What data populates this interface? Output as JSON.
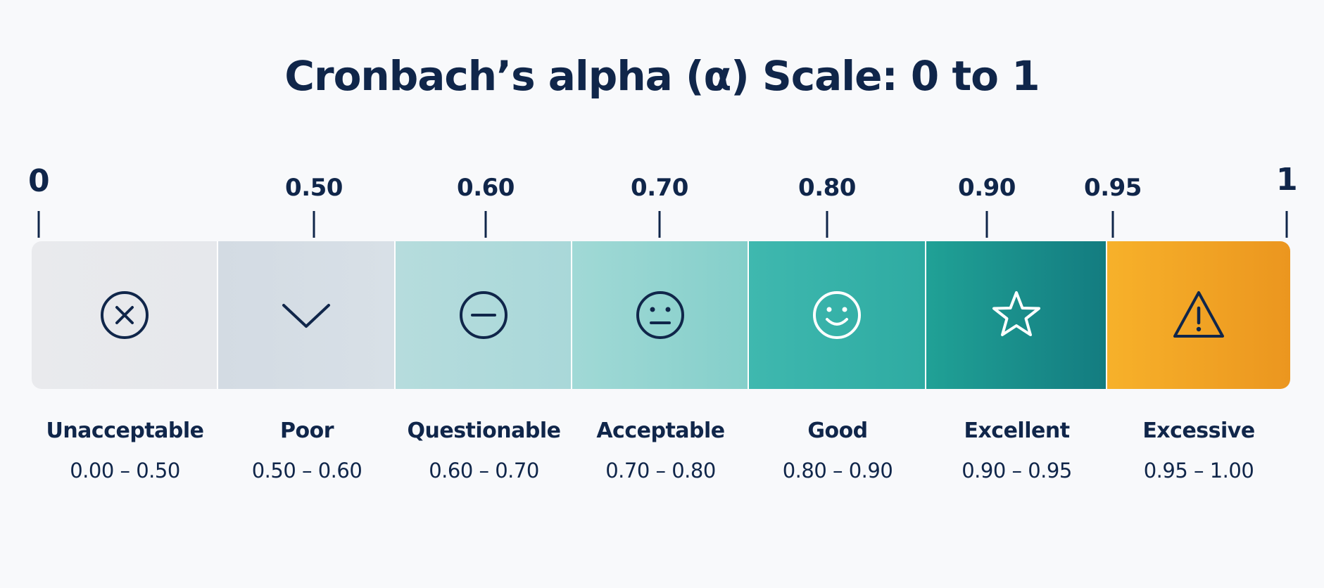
{
  "title": "Cronbach’s alpha (α) Scale: 0 to 1",
  "ticks": [
    {
      "value": 0,
      "label": "0"
    },
    {
      "value": 0.5,
      "label": "0.50"
    },
    {
      "value": 0.6,
      "label": "0.60"
    },
    {
      "value": 0.7,
      "label": "0.70"
    },
    {
      "value": 0.8,
      "label": "0.80"
    },
    {
      "value": 0.9,
      "label": "0.90"
    },
    {
      "value": 0.95,
      "label": "0.95"
    },
    {
      "value": 1,
      "label": "1"
    }
  ],
  "segments": [
    {
      "name": "Unacceptable",
      "range": "0.00 – 0.50",
      "icon": "x-circle-icon",
      "colors": [
        "#e9eaed",
        "#e6e8ec"
      ]
    },
    {
      "name": "Poor",
      "range": "0.50 – 0.60",
      "icon": "chevron-down-icon",
      "colors": [
        "#d3dbe3",
        "#d8e0e7"
      ]
    },
    {
      "name": "Questionable",
      "range": "0.60 – 0.70",
      "icon": "minus-circle-icon",
      "colors": [
        "#b6dcdd",
        "#a9d8d9"
      ]
    },
    {
      "name": "Acceptable",
      "range": "0.70 – 0.80",
      "icon": "neutral-face-icon",
      "colors": [
        "#a1d9d6",
        "#84cfca"
      ]
    },
    {
      "name": "Good",
      "range": "0.80 – 0.90",
      "icon": "smile-face-icon",
      "colors": [
        "#3fb8af",
        "#2eaba2"
      ]
    },
    {
      "name": "Excellent",
      "range": "0.90 – 0.95",
      "icon": "star-icon",
      "colors": [
        "#20a196",
        "#137c80"
      ]
    },
    {
      "name": "Excessive",
      "range": "0.95 – 1.00",
      "icon": "warning-icon",
      "colors": [
        "#f7b12a",
        "#eb961f"
      ]
    }
  ]
}
